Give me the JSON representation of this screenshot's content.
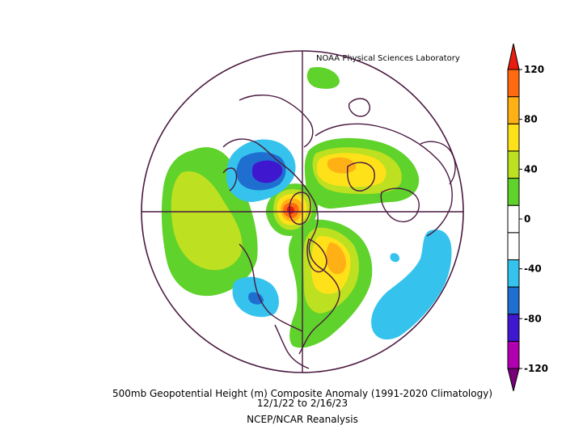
{
  "credit": "NOAA Physical Sciences Laboratory",
  "title_line1": "500mb Geopotential Height (m) Composite Anomaly (1991-2020 Climatology)",
  "title_line2": "12/1/22   to 2/16/23",
  "source": "NCEP/NCAR Reanalysis",
  "colorbar": {
    "ticks": [
      "120",
      "80",
      "40",
      "0",
      "-40",
      "-80",
      "-120"
    ],
    "colors": [
      "#7a007a",
      "#b000b0",
      "#3f17cf",
      "#1f6fd1",
      "#35c3ee",
      "#ffffff",
      "#ffffff",
      "#5fd22b",
      "#bde020",
      "#ffe11a",
      "#ffb015",
      "#ff6a10",
      "#e81d10"
    ]
  },
  "colors": {
    "outline": "#4a1a40",
    "pos_40": "#5fd22b",
    "pos_60": "#bde020",
    "pos_80": "#ffe11a",
    "pos_100": "#ffb015",
    "pos_120": "#ff6a10",
    "pos_140": "#e81d10",
    "neg_40": "#35c3ee",
    "neg_60": "#1f6fd1",
    "neg_80": "#3f17cf"
  }
}
